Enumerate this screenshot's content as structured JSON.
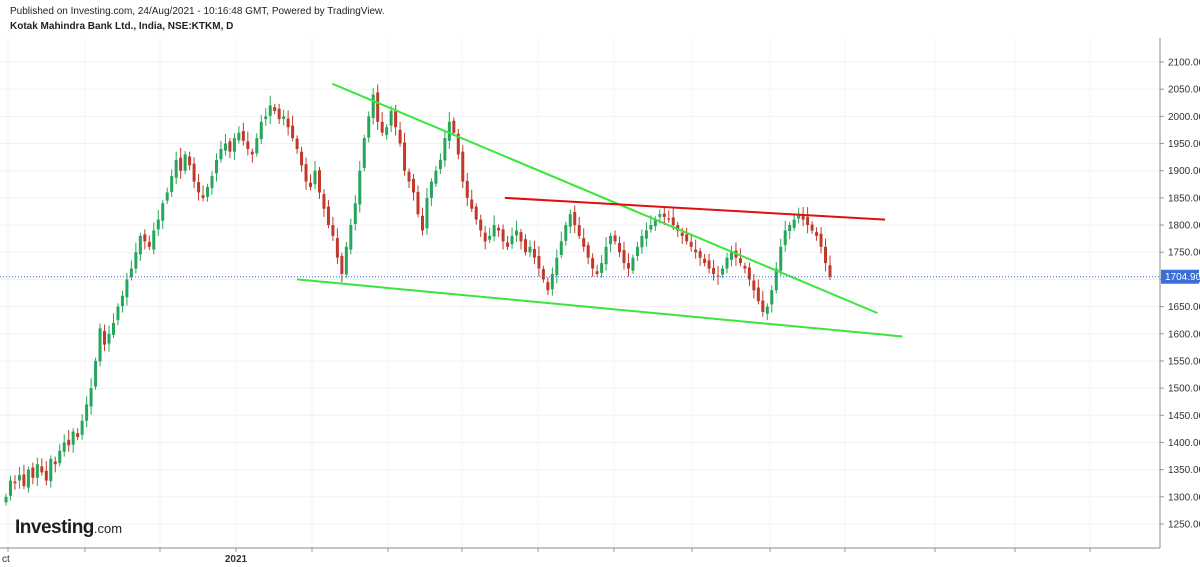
{
  "header": {
    "published": "Published on Investing.com, 24/Aug/2021 - 10:16:48 GMT, Powered by TradingView.",
    "symbol": "Kotak Mahindra Bank Ltd., India, NSE:KTKM, D"
  },
  "logo": {
    "brand": "Investing",
    "suffix": ".com"
  },
  "chart_data": {
    "type": "candlestick",
    "title": "Kotak Mahindra Bank Ltd., India, NSE:KTKM, D",
    "y_ticks": [
      2100,
      2050,
      2000,
      1950,
      1900,
      1850,
      1800,
      1750,
      1700,
      1650,
      1600,
      1550,
      1500,
      1450,
      1400,
      1350,
      1300,
      1250
    ],
    "y_tick_labels": [
      "2100.00",
      "2050.00",
      "2000.00",
      "1950.00",
      "1900.00",
      "1850.00",
      "1800.00",
      "1750.00",
      "1700.00",
      "1650.00",
      "1600.00",
      "1550.00",
      "1500.00",
      "1450.00",
      "1400.00",
      "1350.00",
      "1300.00",
      "1250.00"
    ],
    "ylim": [
      1220,
      2130
    ],
    "x_tick_labels": [
      "ct",
      "2021"
    ],
    "last_price": 1704.9,
    "last_price_label": "1704.90",
    "colors": {
      "up": "#26a65b",
      "down": "#c0392b",
      "support": "#39e639",
      "resistance": "#e01010",
      "price_line": "#3b6fd8"
    },
    "closes": [
      1300,
      1330,
      1325,
      1340,
      1320,
      1350,
      1335,
      1360,
      1345,
      1330,
      1370,
      1360,
      1385,
      1400,
      1395,
      1420,
      1410,
      1440,
      1470,
      1500,
      1550,
      1610,
      1580,
      1600,
      1620,
      1650,
      1670,
      1700,
      1720,
      1750,
      1780,
      1770,
      1760,
      1790,
      1810,
      1840,
      1860,
      1890,
      1920,
      1900,
      1930,
      1910,
      1880,
      1860,
      1850,
      1870,
      1890,
      1920,
      1940,
      1950,
      1935,
      1960,
      1970,
      1955,
      1940,
      1930,
      1960,
      1990,
      2000,
      2020,
      2010,
      1995,
      2000,
      1980,
      1960,
      1940,
      1910,
      1880,
      1870,
      1900,
      1860,
      1830,
      1800,
      1780,
      1740,
      1710,
      1760,
      1800,
      1840,
      1900,
      1960,
      2000,
      2040,
      1990,
      1970,
      1980,
      2010,
      1980,
      1950,
      1900,
      1880,
      1860,
      1820,
      1790,
      1850,
      1880,
      1900,
      1920,
      1960,
      1990,
      1970,
      1930,
      1880,
      1850,
      1830,
      1810,
      1790,
      1770,
      1780,
      1800,
      1790,
      1770,
      1760,
      1780,
      1790,
      1770,
      1750,
      1760,
      1740,
      1720,
      1700,
      1680,
      1710,
      1740,
      1770,
      1800,
      1820,
      1800,
      1780,
      1760,
      1740,
      1720,
      1710,
      1730,
      1760,
      1780,
      1770,
      1750,
      1730,
      1720,
      1740,
      1760,
      1780,
      1790,
      1800,
      1810,
      1820,
      1815,
      1810,
      1800,
      1790,
      1780,
      1770,
      1760,
      1750,
      1740,
      1730,
      1720,
      1710,
      1705,
      1720,
      1740,
      1750,
      1740,
      1730,
      1720,
      1700,
      1680,
      1660,
      1640,
      1650,
      1680,
      1720,
      1760,
      1790,
      1800,
      1810,
      1820,
      1810,
      1800,
      1790,
      1780,
      1760,
      1730,
      1705
    ],
    "annotations": [
      {
        "type": "trendline",
        "name": "upper-wedge-line",
        "color": "support",
        "from": [
          0.2865,
          2060
        ],
        "to": [
          0.7565,
          1638
        ]
      },
      {
        "type": "trendline",
        "name": "lower-wedge-line",
        "color": "support",
        "from": [
          0.256,
          1700
        ],
        "to": [
          0.778,
          1595
        ]
      },
      {
        "type": "trendline",
        "name": "resistance-line",
        "color": "resistance",
        "from": [
          0.4352,
          1850
        ],
        "to": [
          0.763,
          1810
        ]
      }
    ]
  }
}
